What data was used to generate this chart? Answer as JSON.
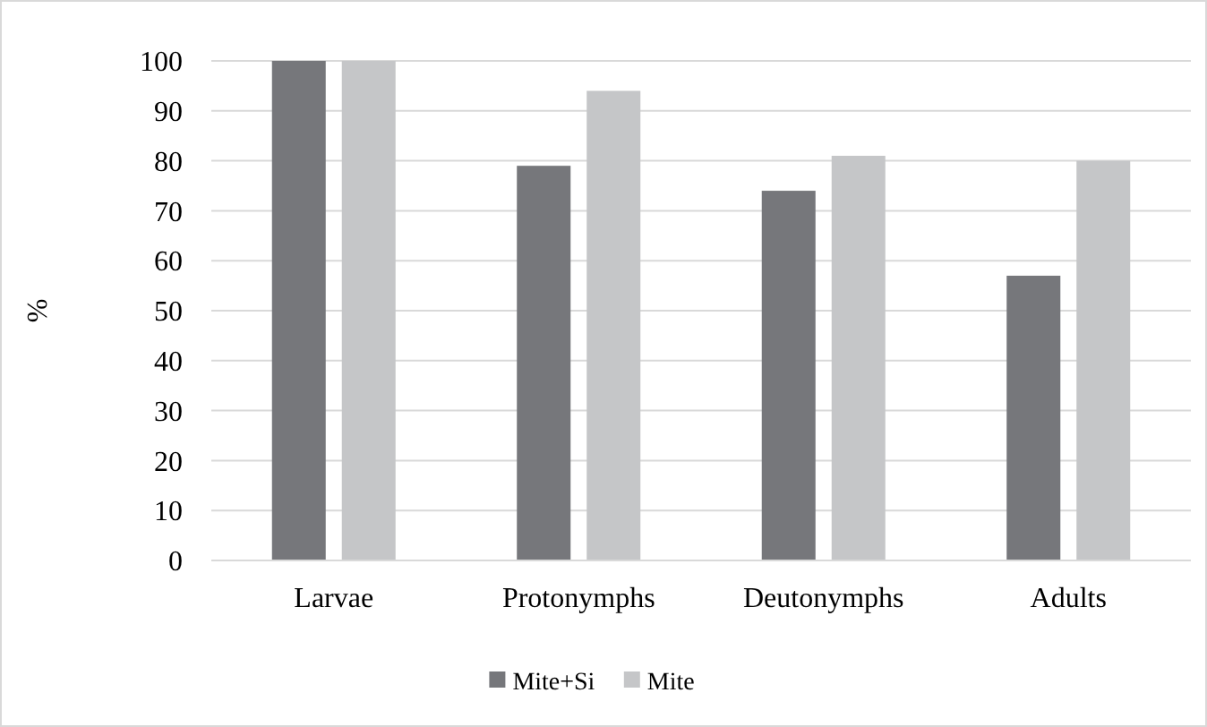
{
  "chart_data": {
    "type": "bar",
    "ylabel": "%",
    "categories": [
      "Larvae",
      "Protonymphs",
      "Deutonymphs",
      "Adults"
    ],
    "series": [
      {
        "name": "Mite+Si",
        "color": "#76777b",
        "values": [
          100,
          79,
          74,
          57
        ]
      },
      {
        "name": "Mite",
        "color": "#c5c6c8",
        "values": [
          100,
          94,
          81,
          80
        ]
      }
    ],
    "ylim": [
      0,
      100
    ],
    "yticks": [
      0,
      10,
      20,
      30,
      40,
      50,
      60,
      70,
      80,
      90,
      100
    ],
    "grid": "y",
    "legend": "bottom"
  }
}
